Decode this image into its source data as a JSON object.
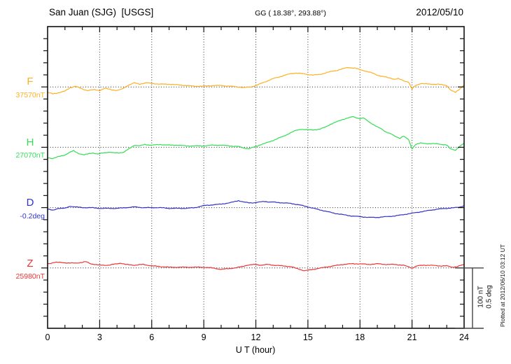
{
  "header": {
    "station": "San Juan (SJG)  [USGS]",
    "coords": "GG ( 18.38°, 293.88°)",
    "date": "2012/05/10"
  },
  "axes": {
    "x_label": "U T (hour)",
    "x_ticks": [
      0,
      3,
      6,
      9,
      12,
      15,
      18,
      21,
      24
    ],
    "x_range": [
      0,
      24
    ],
    "minor_tick_every_hours": 1,
    "grid_hours": [
      3,
      6,
      9,
      12,
      15,
      18,
      21
    ],
    "y_minor_tick_nT": 20
  },
  "scale_bar": {
    "label_nt": "100 nT",
    "label_deg": "0.5 deg"
  },
  "footer_note": "Plotted at 2012/06/10 03:12 UT",
  "chart_data": {
    "type": "line",
    "title": "San Juan (SJG) [USGS] magnetogram, 2012/05/10",
    "xlabel": "U T (hour)",
    "x_range": [
      0,
      24
    ],
    "x_ticks": [
      0,
      3,
      6,
      9,
      12,
      15,
      18,
      21,
      24
    ],
    "grid": "dotted vertical lines every 3 hours; dotted horizontal baseline per channel",
    "legend_position": "left margin channel labels",
    "scale": {
      "per_division_nT": 100,
      "per_division_deg": 0.5
    },
    "series": [
      {
        "name": "F",
        "unit": "nT",
        "baseline": 37570,
        "baseline_label": "37570nT",
        "color": "#FFAF21",
        "points_format": "[UT_hour, offset_from_baseline_nT]",
        "points": [
          [
            0,
            -9.2
          ],
          [
            0.3,
            -11.5
          ],
          [
            0.7,
            -9.2
          ],
          [
            1,
            -6.9
          ],
          [
            1.3,
            -1.2
          ],
          [
            1.6,
            1.2
          ],
          [
            2,
            -3.5
          ],
          [
            2.3,
            -5.8
          ],
          [
            2.7,
            -4.6
          ],
          [
            3,
            -5.8
          ],
          [
            3.3,
            -2.3
          ],
          [
            3.7,
            -4.6
          ],
          [
            4,
            -5.8
          ],
          [
            4.3,
            -3.5
          ],
          [
            4.6,
            2.3
          ],
          [
            5,
            6.9
          ],
          [
            5.3,
            4.6
          ],
          [
            5.7,
            6.9
          ],
          [
            6,
            5.8
          ],
          [
            6.5,
            4.6
          ],
          [
            7,
            4.6
          ],
          [
            7.5,
            3.5
          ],
          [
            8,
            2.3
          ],
          [
            8.5,
            1.2
          ],
          [
            9,
            1.2
          ],
          [
            9.5,
            2.3
          ],
          [
            10,
            2.3
          ],
          [
            10.5,
            1.2
          ],
          [
            11,
            0
          ],
          [
            11.3,
            -1.2
          ],
          [
            11.7,
            0
          ],
          [
            12,
            2.3
          ],
          [
            12.3,
            5.8
          ],
          [
            12.7,
            10.4
          ],
          [
            13,
            13.8
          ],
          [
            13.3,
            16.2
          ],
          [
            13.7,
            19.6
          ],
          [
            14,
            21.9
          ],
          [
            14.3,
            23.1
          ],
          [
            14.7,
            21.9
          ],
          [
            15,
            20.8
          ],
          [
            15.3,
            19.6
          ],
          [
            15.7,
            20.8
          ],
          [
            16,
            23.1
          ],
          [
            16.3,
            25.4
          ],
          [
            16.7,
            27.7
          ],
          [
            17,
            30
          ],
          [
            17.3,
            32.3
          ],
          [
            17.7,
            31.2
          ],
          [
            18,
            28.8
          ],
          [
            18.3,
            26.5
          ],
          [
            18.7,
            23.1
          ],
          [
            19,
            19.6
          ],
          [
            19.3,
            17.3
          ],
          [
            19.7,
            15
          ],
          [
            20,
            12.7
          ],
          [
            20.2,
            13.8
          ],
          [
            20.5,
            10.4
          ],
          [
            20.8,
            8.1
          ],
          [
            21,
            -3.5
          ],
          [
            21.2,
            2.3
          ],
          [
            21.5,
            5.8
          ],
          [
            22,
            4.6
          ],
          [
            22.5,
            4.6
          ],
          [
            23,
            2.3
          ],
          [
            23.2,
            -4.6
          ],
          [
            23.5,
            -9.2
          ],
          [
            23.7,
            -4.6
          ],
          [
            24,
            3.5
          ]
        ]
      },
      {
        "name": "H",
        "unit": "nT",
        "baseline": 27070,
        "baseline_label": "27070nT",
        "color": "#33DD55",
        "points_format": "[UT_hour, offset_from_baseline_nT]",
        "points": [
          [
            0,
            -17.3
          ],
          [
            0.3,
            -18.5
          ],
          [
            0.7,
            -15
          ],
          [
            1,
            -12.7
          ],
          [
            1.3,
            -8.1
          ],
          [
            1.5,
            -5.8
          ],
          [
            1.8,
            -10.4
          ],
          [
            2.1,
            -12.7
          ],
          [
            2.4,
            -10.4
          ],
          [
            2.6,
            -9.2
          ],
          [
            2.9,
            -11.5
          ],
          [
            3.2,
            -9.2
          ],
          [
            3.5,
            -8.1
          ],
          [
            3.8,
            -9.2
          ],
          [
            4.1,
            -9.2
          ],
          [
            4.4,
            -8.1
          ],
          [
            4.7,
            -2.3
          ],
          [
            5,
            3.5
          ],
          [
            5.3,
            2.3
          ],
          [
            5.6,
            4.6
          ],
          [
            6,
            3.5
          ],
          [
            6.5,
            4.6
          ],
          [
            7,
            3.5
          ],
          [
            7.5,
            3.5
          ],
          [
            8,
            2.3
          ],
          [
            8.5,
            2.3
          ],
          [
            9,
            2.3
          ],
          [
            9.5,
            3.5
          ],
          [
            10,
            3.5
          ],
          [
            10.5,
            2.3
          ],
          [
            11,
            1.2
          ],
          [
            11.3,
            -1.2
          ],
          [
            11.6,
            -2.3
          ],
          [
            12,
            1.2
          ],
          [
            12.3,
            4.6
          ],
          [
            12.7,
            8.1
          ],
          [
            13,
            11.5
          ],
          [
            13.3,
            15
          ],
          [
            13.7,
            19.6
          ],
          [
            14,
            24.2
          ],
          [
            14.3,
            27.7
          ],
          [
            14.6,
            30
          ],
          [
            15,
            28.8
          ],
          [
            15.3,
            28.8
          ],
          [
            15.7,
            30
          ],
          [
            16,
            33.5
          ],
          [
            16.3,
            38.1
          ],
          [
            16.7,
            42.7
          ],
          [
            17,
            46.2
          ],
          [
            17.3,
            48.5
          ],
          [
            17.6,
            50.8
          ],
          [
            18,
            47.3
          ],
          [
            18.2,
            48.5
          ],
          [
            18.5,
            42.7
          ],
          [
            19,
            33.5
          ],
          [
            19.2,
            31.2
          ],
          [
            19.5,
            25.4
          ],
          [
            19.8,
            21.9
          ],
          [
            20,
            18.5
          ],
          [
            20.3,
            15
          ],
          [
            20.5,
            18.5
          ],
          [
            20.8,
            12.7
          ],
          [
            21,
            -2.3
          ],
          [
            21.2,
            4.6
          ],
          [
            21.5,
            6.9
          ],
          [
            22,
            5.8
          ],
          [
            22.5,
            5.8
          ],
          [
            23,
            3.5
          ],
          [
            23.2,
            -2.3
          ],
          [
            23.5,
            -4.6
          ],
          [
            23.7,
            0
          ],
          [
            24,
            6.9
          ]
        ]
      },
      {
        "name": "D",
        "unit": "deg",
        "baseline": -0.2,
        "baseline_label": "-0.2deg",
        "color": "#3232CC",
        "points_format": "[UT_hour, offset_from_baseline_deg]",
        "points": [
          [
            0,
            -0.012
          ],
          [
            0.3,
            -0.023
          ],
          [
            0.6,
            -0.006
          ],
          [
            1,
            -0.006
          ],
          [
            1.3,
            0.012
          ],
          [
            1.6,
            0.006
          ],
          [
            2,
            0
          ],
          [
            2.5,
            0
          ],
          [
            3,
            -0.006
          ],
          [
            3.5,
            -0.006
          ],
          [
            4,
            -0.006
          ],
          [
            4.5,
            0
          ],
          [
            5,
            0.006
          ],
          [
            5.5,
            0
          ],
          [
            6,
            0
          ],
          [
            6.5,
            0
          ],
          [
            7,
            -0.006
          ],
          [
            7.5,
            -0.006
          ],
          [
            8,
            -0.006
          ],
          [
            8.5,
            0
          ],
          [
            9,
            0.017
          ],
          [
            9.5,
            0.023
          ],
          [
            10,
            0.029
          ],
          [
            10.5,
            0.04
          ],
          [
            11,
            0.058
          ],
          [
            11.3,
            0.046
          ],
          [
            11.6,
            0.04
          ],
          [
            11.9,
            0.04
          ],
          [
            12.2,
            0.046
          ],
          [
            12.5,
            0.052
          ],
          [
            12.8,
            0.046
          ],
          [
            13,
            0.046
          ],
          [
            13.5,
            0.04
          ],
          [
            14,
            0.035
          ],
          [
            14.5,
            0.023
          ],
          [
            15,
            0.006
          ],
          [
            15.5,
            -0.012
          ],
          [
            16,
            -0.029
          ],
          [
            16.5,
            -0.046
          ],
          [
            17,
            -0.058
          ],
          [
            17.5,
            -0.069
          ],
          [
            18,
            -0.075
          ],
          [
            18.5,
            -0.081
          ],
          [
            19,
            -0.081
          ],
          [
            19.5,
            -0.075
          ],
          [
            20,
            -0.069
          ],
          [
            20.5,
            -0.058
          ],
          [
            21,
            -0.046
          ],
          [
            21.5,
            -0.035
          ],
          [
            22,
            -0.023
          ],
          [
            22.5,
            -0.012
          ],
          [
            23,
            -0.006
          ],
          [
            23.5,
            0
          ],
          [
            23.8,
            0.006
          ],
          [
            24,
            0.017
          ]
        ]
      },
      {
        "name": "Z",
        "unit": "nT",
        "baseline": 25980,
        "baseline_label": "25980nT",
        "color": "#EE3333",
        "points_format": "[UT_hour, offset_from_baseline_nT]",
        "points": [
          [
            0,
            6.9
          ],
          [
            0.4,
            9.2
          ],
          [
            0.8,
            9.2
          ],
          [
            1.2,
            8.1
          ],
          [
            1.6,
            8.1
          ],
          [
            2,
            9.2
          ],
          [
            2.2,
            10.4
          ],
          [
            2.5,
            6.9
          ],
          [
            3,
            4.6
          ],
          [
            3.5,
            4.6
          ],
          [
            4,
            6.9
          ],
          [
            4.2,
            8.1
          ],
          [
            4.5,
            5.8
          ],
          [
            5,
            4.6
          ],
          [
            5.5,
            5.8
          ],
          [
            6,
            3.5
          ],
          [
            6.5,
            2.3
          ],
          [
            7,
            1.2
          ],
          [
            7.5,
            1.2
          ],
          [
            8,
            1.2
          ],
          [
            8.5,
            1.2
          ],
          [
            9,
            1.2
          ],
          [
            9.5,
            0
          ],
          [
            10,
            -2.3
          ],
          [
            10.4,
            -1.2
          ],
          [
            10.8,
            0
          ],
          [
            11.2,
            2.3
          ],
          [
            11.5,
            4.6
          ],
          [
            12,
            5.8
          ],
          [
            12.3,
            4.6
          ],
          [
            12.7,
            5.8
          ],
          [
            13,
            4.6
          ],
          [
            13.5,
            3.5
          ],
          [
            14,
            2.3
          ],
          [
            14.4,
            -1.2
          ],
          [
            14.8,
            -4.6
          ],
          [
            15.1,
            -3.5
          ],
          [
            15.5,
            -1.2
          ],
          [
            16,
            1.2
          ],
          [
            16.5,
            3.5
          ],
          [
            17,
            5.8
          ],
          [
            17.5,
            6.9
          ],
          [
            18,
            6.9
          ],
          [
            18.5,
            5.8
          ],
          [
            19,
            6.9
          ],
          [
            19.5,
            5.8
          ],
          [
            20,
            5.8
          ],
          [
            20.5,
            4.6
          ],
          [
            21,
            0
          ],
          [
            21.3,
            3.5
          ],
          [
            21.7,
            4.6
          ],
          [
            22,
            4.6
          ],
          [
            22.5,
            3.5
          ],
          [
            23,
            3.5
          ],
          [
            23.3,
            1.2
          ],
          [
            23.6,
            2.3
          ],
          [
            24,
            5.8
          ]
        ]
      }
    ]
  }
}
